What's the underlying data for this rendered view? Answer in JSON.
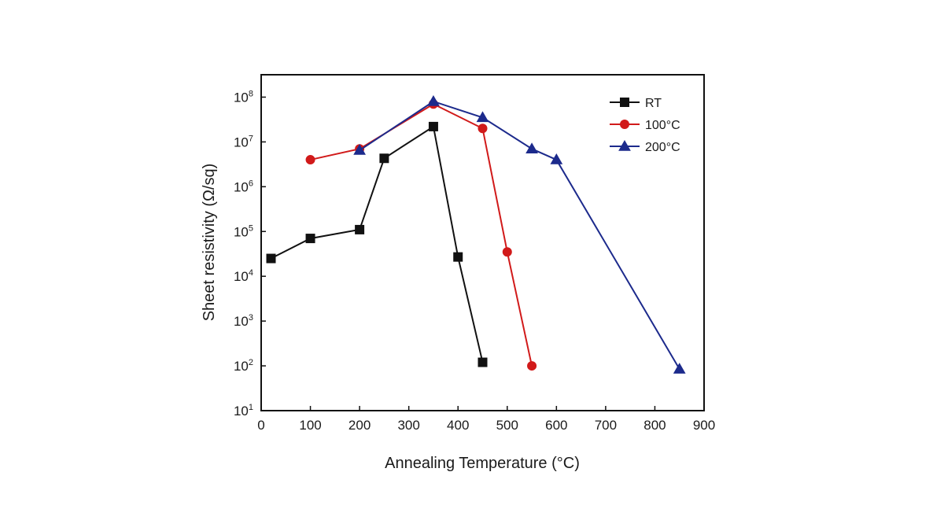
{
  "chart_data": {
    "type": "line",
    "title": "",
    "xlabel": "Annealing Temperature (°C)",
    "ylabel": "Sheet resistivity (Ω/sq)",
    "xlim": [
      0,
      900
    ],
    "ylim_log10": [
      1,
      8.5
    ],
    "yscale": "log",
    "grid": false,
    "legend_position": "top-right",
    "x_ticks": [
      0,
      100,
      200,
      300,
      400,
      500,
      600,
      700,
      800,
      900
    ],
    "y_ticks_exponent": [
      1,
      2,
      3,
      4,
      5,
      6,
      7,
      8
    ],
    "y_tick_base": "10",
    "series": [
      {
        "name": "RT",
        "color": "#111111",
        "marker": "square",
        "x": [
          20,
          100,
          200,
          250,
          350,
          400,
          450
        ],
        "y": [
          25000,
          70000,
          110000,
          4300000,
          22000000,
          27000,
          120
        ]
      },
      {
        "name": "100°C",
        "color": "#d11a1a",
        "marker": "circle",
        "x": [
          100,
          200,
          350,
          450,
          500,
          550
        ],
        "y": [
          4000000,
          7000000,
          70000000,
          20000000,
          35000,
          100
        ]
      },
      {
        "name": "200°C",
        "color": "#1c2a8c",
        "marker": "triangle",
        "x": [
          200,
          350,
          450,
          550,
          600,
          850
        ],
        "y": [
          6500000,
          80000000,
          35000000,
          7000000,
          4000000,
          85
        ]
      }
    ]
  }
}
